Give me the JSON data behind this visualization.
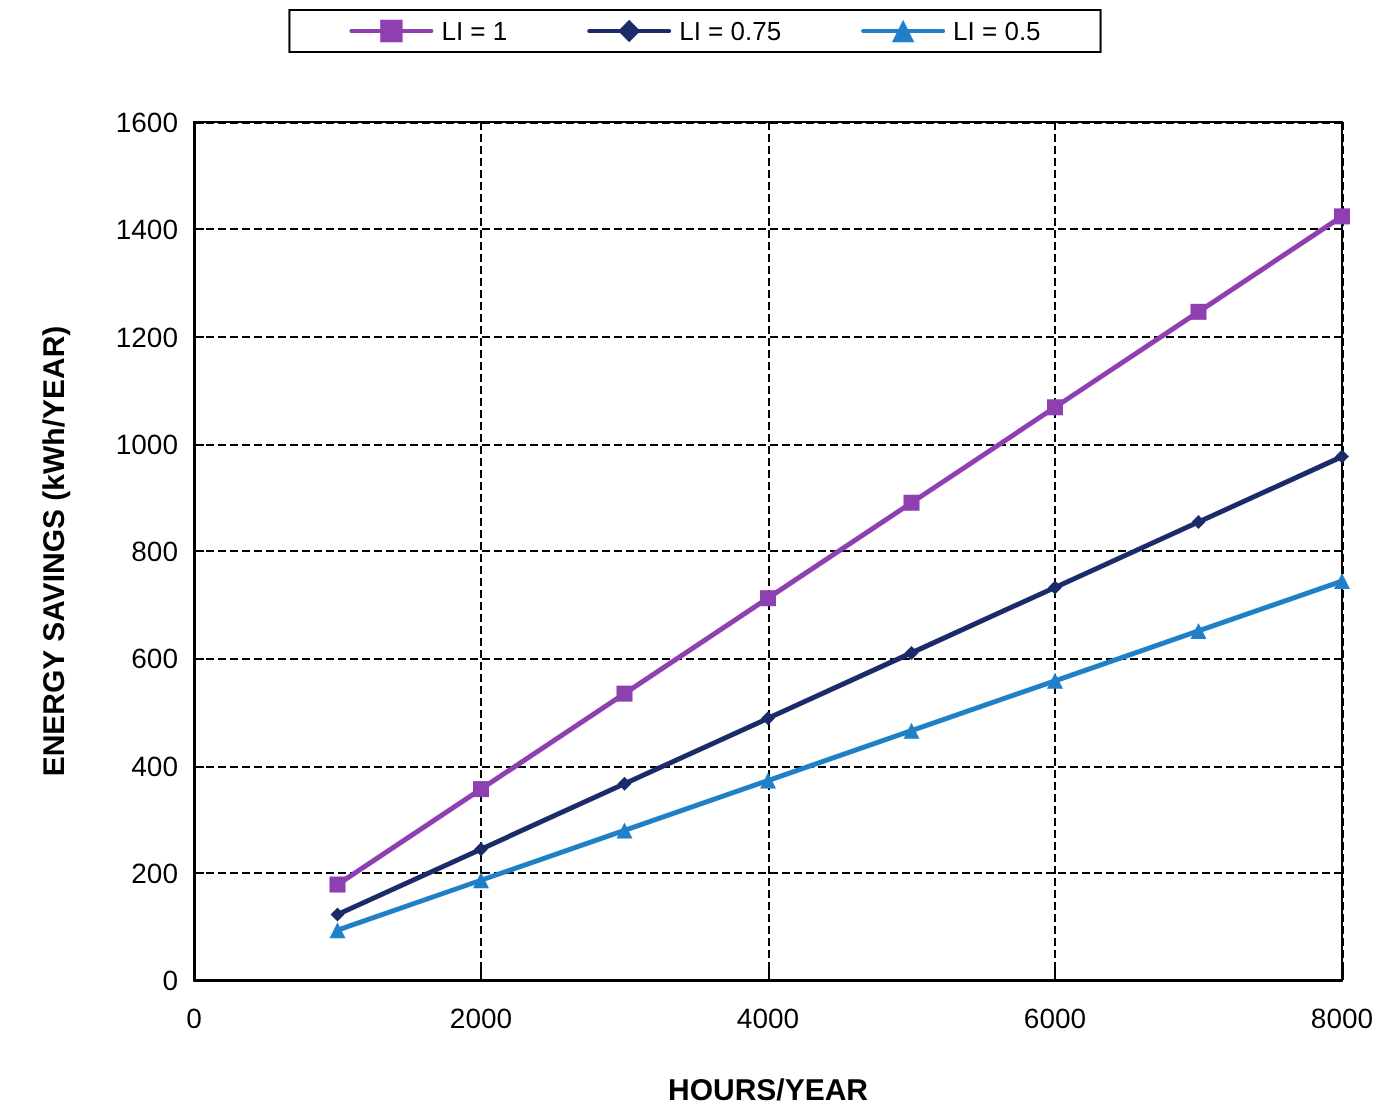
{
  "chart_data": {
    "type": "line",
    "xlabel": "HOURS/YEAR",
    "ylabel": "ENERGY SAVINGS (kWh/YEAR)",
    "x": [
      1000,
      2000,
      3000,
      4000,
      5000,
      6000,
      7000,
      8000
    ],
    "series": [
      {
        "name": "LI = 1",
        "color": "#8e3fb0",
        "marker": "square",
        "values": [
          178,
          356,
          534,
          712,
          890,
          1068,
          1246,
          1424
        ]
      },
      {
        "name": "LI = 0.75",
        "color": "#1b2a68",
        "marker": "diamond",
        "values": [
          122,
          244,
          366,
          488,
          610,
          732,
          854,
          976
        ]
      },
      {
        "name": "LI = 0.5",
        "color": "#1f80c8",
        "marker": "triangle",
        "values": [
          93,
          186,
          279,
          372,
          465,
          558,
          651,
          744
        ]
      }
    ],
    "xlim": [
      0,
      8000
    ],
    "xticks": [
      0,
      2000,
      4000,
      6000,
      8000
    ],
    "ylim": [
      0,
      1600
    ],
    "yticks": [
      0,
      200,
      400,
      600,
      800,
      1000,
      1200,
      1400,
      1600
    ],
    "grid": true,
    "legend": "top",
    "line_style": "solid"
  }
}
